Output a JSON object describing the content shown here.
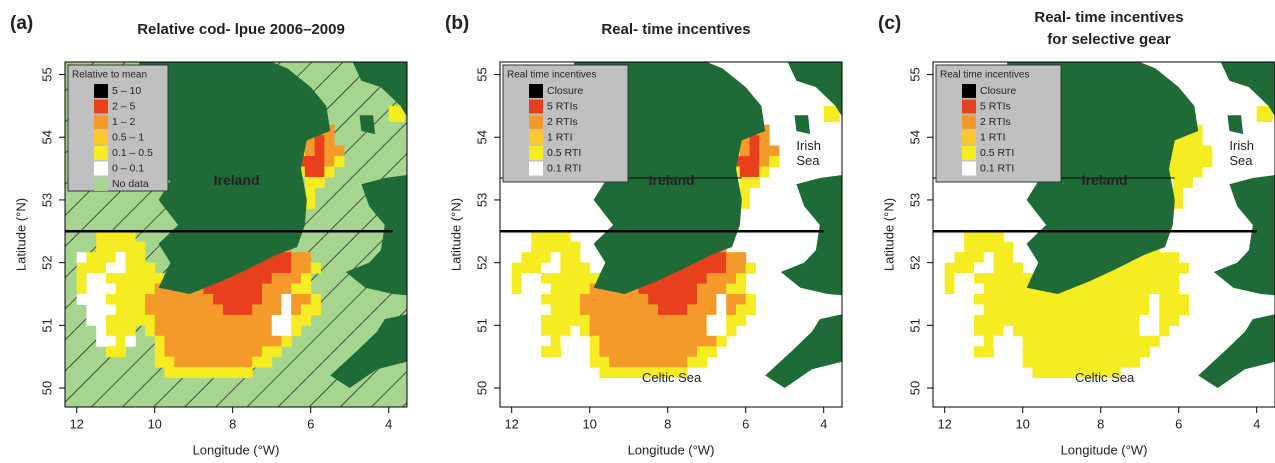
{
  "axes": {
    "x_label": "Longitude (°W)",
    "y_label": "Latitude (°N)",
    "x_ticks": [
      12,
      10,
      8,
      6,
      4
    ],
    "y_ticks": [
      50,
      51,
      52,
      53,
      54,
      55
    ]
  },
  "panels": [
    {
      "letter": "(a)",
      "title": [
        "Relative cod- lpue 2006–2009"
      ],
      "legend": {
        "title": "Relative to mean",
        "items": [
          {
            "label": "5 – 10",
            "color": "#000000"
          },
          {
            "label": "2 – 5",
            "color": "#e8401c"
          },
          {
            "label": "1 – 2",
            "color": "#f39a2b"
          },
          {
            "label": "0.5 – 1",
            "color": "#fcc92c"
          },
          {
            "label": "0.1 – 0.5",
            "color": "#f5ec22"
          },
          {
            "label": "0 – 0.1",
            "color": "#ffffff"
          },
          {
            "label": "No data",
            "color": "#a6d58f"
          }
        ]
      },
      "places": [
        [
          "Ireland"
        ]
      ]
    },
    {
      "letter": "(b)",
      "title": [
        "Real- time incentives"
      ],
      "legend": {
        "title": "Real time incentives",
        "items": [
          {
            "label": "Closure",
            "color": "#000000"
          },
          {
            "label": "5 RTIs",
            "color": "#e8401c"
          },
          {
            "label": "2 RTIs",
            "color": "#f39a2b"
          },
          {
            "label": "1 RTI",
            "color": "#fcc92c"
          },
          {
            "label": "0.5 RTI",
            "color": "#f5ec22"
          },
          {
            "label": "0.1 RTI",
            "color": "#ffffff"
          }
        ]
      },
      "places": [
        [
          "Ireland"
        ],
        [
          "Irish",
          "Sea"
        ],
        [
          "Celtic Sea"
        ]
      ]
    },
    {
      "letter": "(c)",
      "title": [
        "Real- time incentives",
        "for selective gear"
      ],
      "legend": {
        "title": "Real time incentives",
        "items": [
          {
            "label": "Closure",
            "color": "#000000"
          },
          {
            "label": "5 RTIs",
            "color": "#e8401c"
          },
          {
            "label": "2 RTIs",
            "color": "#f39a2b"
          },
          {
            "label": "1 RTI",
            "color": "#fcc92c"
          },
          {
            "label": "0.5 RTI",
            "color": "#f5ec22"
          },
          {
            "label": "0.1 RTI",
            "color": "#ffffff"
          }
        ]
      },
      "places": [
        [
          "Ireland"
        ],
        [
          "Irish",
          "Sea"
        ],
        [
          "Celtic Sea"
        ]
      ]
    }
  ]
}
